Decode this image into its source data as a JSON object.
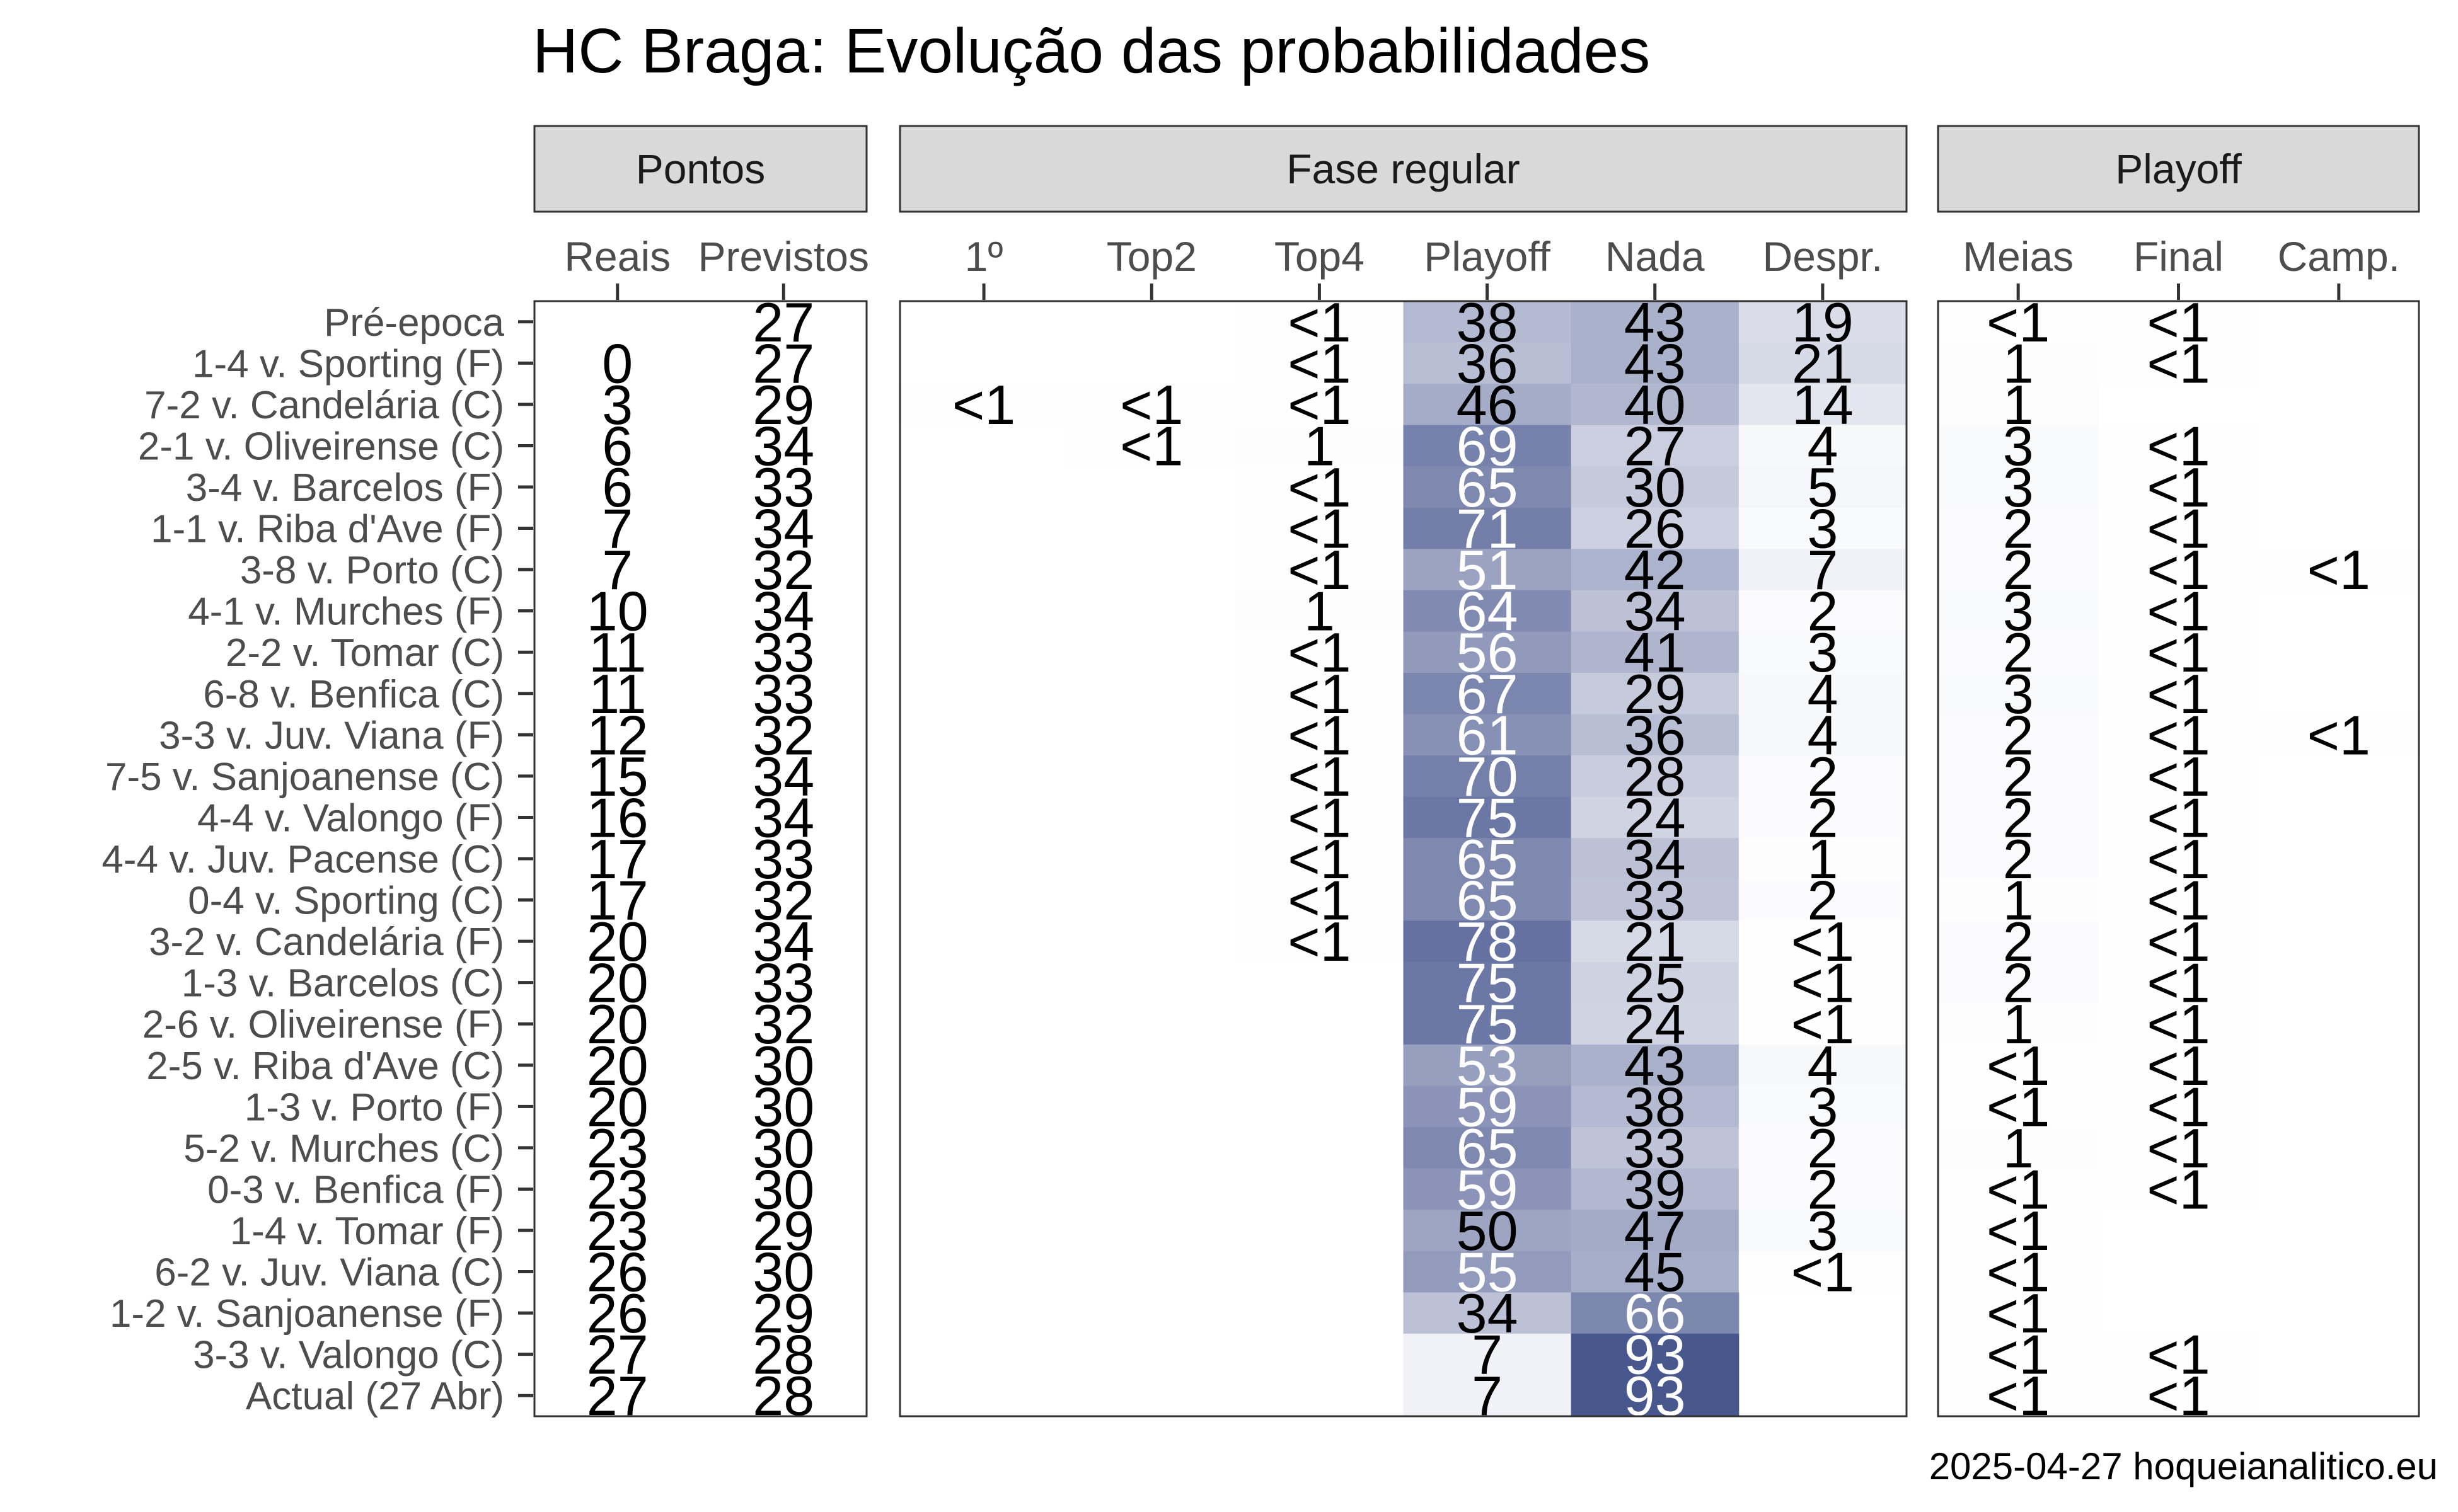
{
  "chart_data": {
    "type": "heatmap",
    "title": "HC Braga: Evolução das probabilidades",
    "caption": "2025-04-27 hoqueianalitico.eu",
    "colors": {
      "low": "#ffffff",
      "high": "#3a4a86",
      "text_dark": "#000000",
      "text_light": "#ffffff"
    },
    "panels": [
      {
        "name": "Pontos",
        "columns": [
          "Reais",
          "Previstos"
        ],
        "colored": false
      },
      {
        "name": "Fase regular",
        "columns": [
          "1º",
          "Top2",
          "Top4",
          "Playoff",
          "Nada",
          "Despr."
        ],
        "colored": true
      },
      {
        "name": "Playoff",
        "columns": [
          "Meias",
          "Final",
          "Camp."
        ],
        "colored": true
      }
    ],
    "rows": [
      "Pré-epoca",
      "1-4 v. Sporting (F)",
      "7-2 v. Candelária (C)",
      "2-1 v. Oliveirense (C)",
      "3-4 v. Barcelos (F)",
      "1-1 v. Riba d'Ave (F)",
      "3-8 v. Porto (C)",
      "4-1 v. Murches (F)",
      "2-2 v. Tomar (C)",
      "6-8 v. Benfica (C)",
      "3-3 v. Juv. Viana (F)",
      "7-5 v. Sanjoanense (C)",
      "4-4 v. Valongo (F)",
      "4-4 v. Juv. Pacense (C)",
      "0-4 v. Sporting (C)",
      "3-2 v. Candelária (F)",
      "1-3 v. Barcelos (C)",
      "2-6 v. Oliveirense (F)",
      "2-5 v. Riba d'Ave (C)",
      "1-3 v. Porto (F)",
      "5-2 v. Murches (C)",
      "0-3 v. Benfica (F)",
      "1-4 v. Tomar (F)",
      "6-2 v. Juv. Viana (C)",
      "1-2 v. Sanjoanense (F)",
      "3-3 v. Valongo (C)",
      "Actual (27 Abr)"
    ],
    "reais": [
      "",
      "0",
      "3",
      "6",
      "6",
      "7",
      "7",
      "10",
      "11",
      "11",
      "12",
      "15",
      "16",
      "17",
      "17",
      "20",
      "20",
      "20",
      "20",
      "20",
      "23",
      "23",
      "23",
      "26",
      "26",
      "27",
      "27"
    ],
    "previstos": [
      "27",
      "27",
      "29",
      "34",
      "33",
      "34",
      "32",
      "34",
      "33",
      "33",
      "32",
      "34",
      "34",
      "33",
      "32",
      "34",
      "33",
      "32",
      "30",
      "30",
      "30",
      "30",
      "29",
      "30",
      "29",
      "28",
      "28"
    ],
    "fase_regular": {
      "1º": [
        "",
        "",
        "<1",
        "",
        "",
        "",
        "",
        "",
        "",
        "",
        "",
        "",
        "",
        "",
        "",
        "",
        "",
        "",
        "",
        "",
        "",
        "",
        "",
        "",
        "",
        "",
        ""
      ],
      "Top2": [
        "",
        "",
        "<1",
        "<1",
        "",
        "",
        "",
        "",
        "",
        "",
        "",
        "",
        "",
        "",
        "",
        "",
        "",
        "",
        "",
        "",
        "",
        "",
        "",
        "",
        "",
        "",
        ""
      ],
      "Top4": [
        "<1",
        "<1",
        "<1",
        "1",
        "<1",
        "<1",
        "<1",
        "1",
        "<1",
        "<1",
        "<1",
        "<1",
        "<1",
        "<1",
        "<1",
        "<1",
        "",
        "",
        "",
        "",
        "",
        "",
        "",
        "",
        "",
        "",
        ""
      ],
      "Playoff": [
        "38",
        "36",
        "46",
        "69",
        "65",
        "71",
        "51",
        "64",
        "56",
        "67",
        "61",
        "70",
        "75",
        "65",
        "65",
        "78",
        "75",
        "75",
        "53",
        "59",
        "65",
        "59",
        "50",
        "55",
        "34",
        "7",
        "7"
      ],
      "Nada": [
        "43",
        "43",
        "40",
        "27",
        "30",
        "26",
        "42",
        "34",
        "41",
        "29",
        "36",
        "28",
        "24",
        "34",
        "33",
        "21",
        "25",
        "24",
        "43",
        "38",
        "33",
        "39",
        "47",
        "45",
        "66",
        "93",
        "93"
      ],
      "Despr.": [
        "19",
        "21",
        "14",
        "4",
        "5",
        "3",
        "7",
        "2",
        "3",
        "4",
        "4",
        "2",
        "2",
        "1",
        "2",
        "<1",
        "<1",
        "<1",
        "4",
        "3",
        "2",
        "2",
        "3",
        "<1",
        "",
        "",
        ""
      ]
    },
    "playoff": {
      "Meias": [
        "<1",
        "1",
        "1",
        "3",
        "3",
        "2",
        "2",
        "3",
        "2",
        "3",
        "2",
        "2",
        "2",
        "2",
        "1",
        "2",
        "2",
        "1",
        "<1",
        "<1",
        "1",
        "<1",
        "<1",
        "<1",
        "<1",
        "<1",
        "<1"
      ],
      "Final": [
        "<1",
        "<1",
        "",
        "<1",
        "<1",
        "<1",
        "<1",
        "<1",
        "<1",
        "<1",
        "<1",
        "<1",
        "<1",
        "<1",
        "<1",
        "<1",
        "<1",
        "<1",
        "<1",
        "<1",
        "<1",
        "<1",
        "",
        "",
        "",
        "<1",
        "<1"
      ],
      "Camp.": [
        "",
        "",
        "",
        "",
        "",
        "",
        "<1",
        "",
        "",
        "",
        "<1",
        "",
        "",
        "",
        "",
        "",
        "",
        "",
        "",
        "",
        "",
        "",
        "",
        "",
        "",
        "",
        ""
      ]
    }
  }
}
